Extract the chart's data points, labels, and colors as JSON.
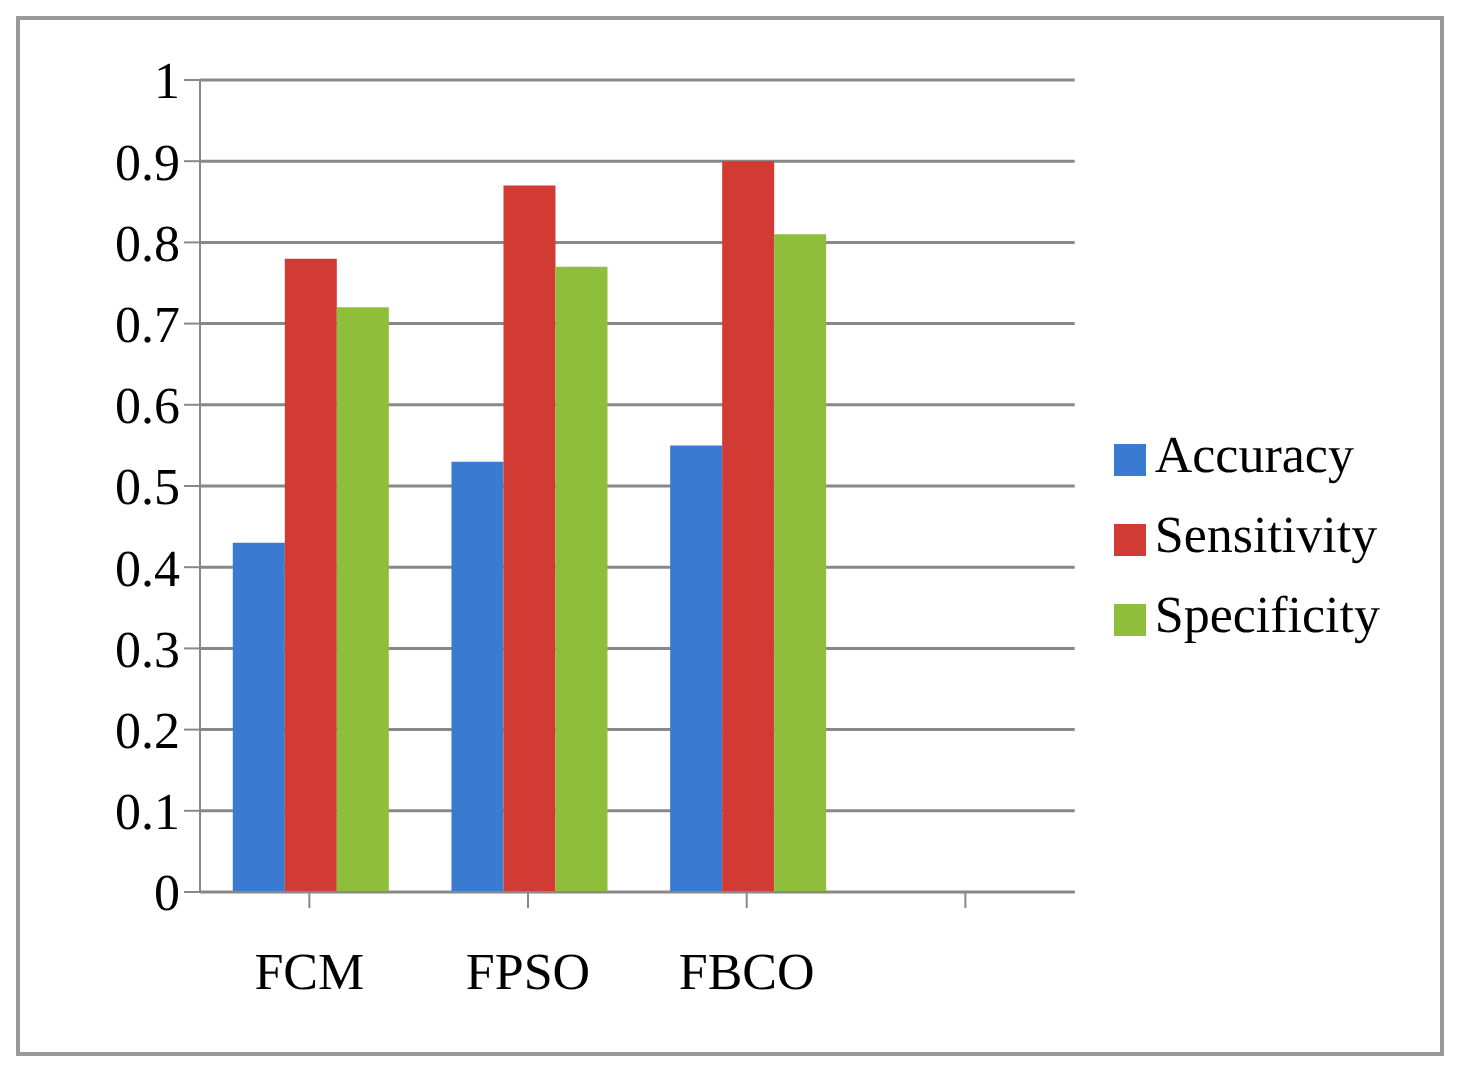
{
  "chart_data": {
    "type": "bar",
    "categories": [
      "FCM",
      "FPSO",
      "FBCO",
      null
    ],
    "series": [
      {
        "name": "Accuracy",
        "color": "#3a7ad0",
        "values": [
          0.43,
          0.53,
          0.55,
          null
        ]
      },
      {
        "name": "Sensitivity",
        "color": "#d23a34",
        "values": [
          0.78,
          0.87,
          0.9,
          null
        ]
      },
      {
        "name": "Specificity",
        "color": "#8fbf3a",
        "values": [
          0.72,
          0.77,
          0.81,
          null
        ]
      }
    ],
    "ylim": [
      0,
      1
    ],
    "yticks": [
      0,
      0.1,
      0.2,
      0.3,
      0.4,
      0.5,
      0.6,
      0.7,
      0.8,
      0.9,
      1
    ],
    "grid": "y",
    "legend": "right"
  }
}
